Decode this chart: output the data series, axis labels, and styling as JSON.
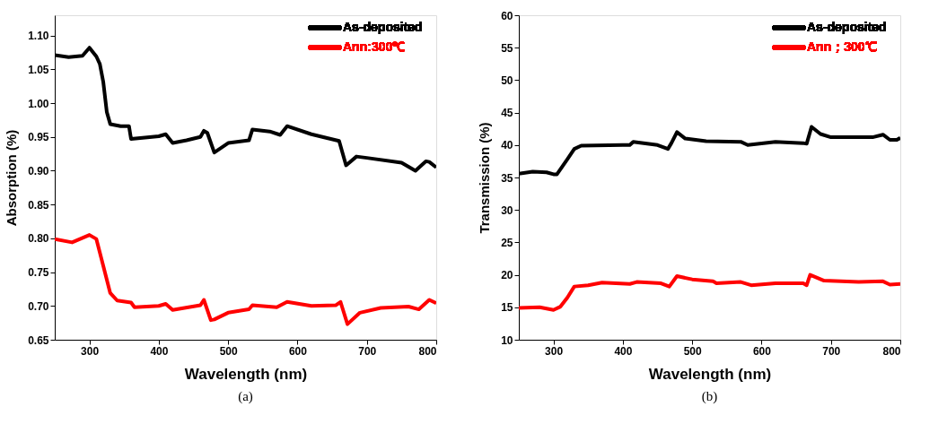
{
  "chart_data": [
    {
      "type": "line",
      "xlabel": "Wavelength (nm)",
      "ylabel": "Absorption (%)",
      "annotations": [
        "(a)"
      ],
      "xlim": [
        250,
        800
      ],
      "xticks": [
        300,
        400,
        500,
        600,
        700,
        800
      ],
      "ylim": [
        0.65,
        1.13
      ],
      "yticks": [
        {
          "value": 0.65,
          "label": "0.65"
        },
        {
          "value": 0.7,
          "label": "0.70"
        },
        {
          "value": 0.75,
          "label": "0.75"
        },
        {
          "value": 0.8,
          "label": "0.80"
        },
        {
          "value": 0.85,
          "label": "0.85"
        },
        {
          "value": 0.9,
          "label": "0.90"
        },
        {
          "value": 0.95,
          "label": "0.95"
        },
        {
          "value": 1.0,
          "label": "1.00"
        },
        {
          "value": 1.05,
          "label": "1.05"
        },
        {
          "value": 1.1,
          "label": "1.10"
        }
      ],
      "legend": "top right",
      "grid": false,
      "marker": "none",
      "line_style": "solid",
      "series": [
        {
          "name": "As-deposited",
          "color": "#000000",
          "x": [
            250,
            270,
            290,
            300,
            310,
            315,
            320,
            325,
            330,
            345,
            357,
            360,
            380,
            400,
            410,
            420,
            440,
            460,
            465,
            470,
            480,
            500,
            530,
            535,
            560,
            575,
            585,
            620,
            660,
            670,
            685,
            700,
            750,
            770,
            785,
            790,
            800
          ],
          "values": [
            1.071,
            1.068,
            1.07,
            1.082,
            1.069,
            1.058,
            1.031,
            0.987,
            0.969,
            0.966,
            0.966,
            0.947,
            0.949,
            0.951,
            0.954,
            0.941,
            0.945,
            0.95,
            0.959,
            0.956,
            0.927,
            0.941,
            0.945,
            0.961,
            0.958,
            0.953,
            0.966,
            0.954,
            0.944,
            0.908,
            0.921,
            0.919,
            0.912,
            0.9,
            0.914,
            0.913,
            0.905
          ]
        },
        {
          "name": "Ann:300℃",
          "color": "#ff0000",
          "x": [
            250,
            275,
            300,
            310,
            320,
            330,
            340,
            360,
            365,
            400,
            410,
            420,
            460,
            465,
            475,
            480,
            500,
            530,
            535,
            570,
            585,
            620,
            655,
            662,
            672,
            690,
            720,
            760,
            775,
            790,
            800
          ],
          "values": [
            0.799,
            0.794,
            0.805,
            0.799,
            0.759,
            0.719,
            0.708,
            0.705,
            0.698,
            0.7,
            0.703,
            0.694,
            0.701,
            0.709,
            0.679,
            0.68,
            0.69,
            0.695,
            0.701,
            0.698,
            0.706,
            0.7,
            0.701,
            0.706,
            0.673,
            0.69,
            0.697,
            0.699,
            0.695,
            0.709,
            0.704
          ]
        }
      ]
    },
    {
      "type": "line",
      "xlabel": "Wavelength (nm)",
      "ylabel": "Transmission (%)",
      "annotations": [
        "(b)"
      ],
      "xlim": [
        250,
        800
      ],
      "xticks": [
        300,
        400,
        500,
        600,
        700,
        800
      ],
      "ylim": [
        10,
        60
      ],
      "yticks": [
        10,
        15,
        20,
        25,
        30,
        35,
        40,
        45,
        50,
        55,
        60
      ],
      "legend": "top right",
      "grid": false,
      "marker": "none",
      "line_style": "solid",
      "series": [
        {
          "name": "As-deposited",
          "color": "#000000",
          "x": [
            250,
            270,
            290,
            300,
            305,
            320,
            330,
            340,
            400,
            410,
            415,
            450,
            465,
            470,
            478,
            490,
            520,
            570,
            580,
            620,
            660,
            665,
            672,
            685,
            700,
            760,
            775,
            785,
            795,
            800
          ],
          "values": [
            35.6,
            35.9,
            35.8,
            35.5,
            35.5,
            37.8,
            39.4,
            39.9,
            40.0,
            40.0,
            40.5,
            40.0,
            39.4,
            40.3,
            42.0,
            41.0,
            40.6,
            40.5,
            40.0,
            40.5,
            40.3,
            40.2,
            42.8,
            41.7,
            41.2,
            41.2,
            41.6,
            40.8,
            40.8,
            41.1
          ]
        },
        {
          "name": "Ann；300℃",
          "color": "#ff0000",
          "x": [
            250,
            280,
            300,
            310,
            320,
            330,
            350,
            370,
            410,
            420,
            455,
            467,
            478,
            500,
            530,
            535,
            570,
            585,
            620,
            660,
            665,
            670,
            690,
            740,
            775,
            785,
            800
          ],
          "values": [
            14.9,
            15.0,
            14.6,
            15.1,
            16.5,
            18.2,
            18.4,
            18.8,
            18.6,
            18.9,
            18.7,
            18.2,
            19.8,
            19.3,
            19.0,
            18.7,
            18.9,
            18.4,
            18.7,
            18.7,
            18.4,
            20.0,
            19.1,
            18.9,
            19.0,
            18.5,
            18.6
          ]
        }
      ]
    }
  ]
}
